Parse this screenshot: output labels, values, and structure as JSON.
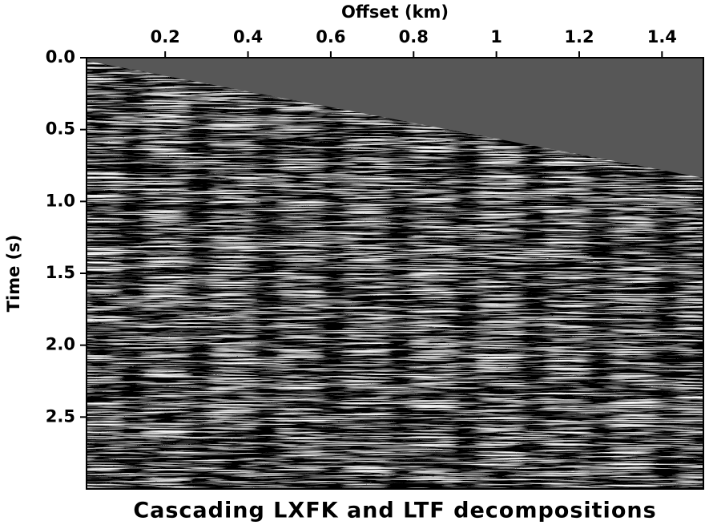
{
  "chart_data": {
    "type": "image",
    "x_label": "Offset (km)",
    "y_label": "Time (s)",
    "caption": "Cascading LXFK and LTF decompositions",
    "xlim": [
      0.01,
      1.5
    ],
    "xticks": [
      0.2,
      0.4,
      0.6,
      0.8,
      1,
      1.2,
      1.4
    ],
    "ylim": [
      0,
      3.0
    ],
    "yticks": [
      {
        "value": 0,
        "label": "0.0"
      },
      {
        "value": 0.5,
        "label": "0.5"
      },
      {
        "value": 1,
        "label": "1.0"
      },
      {
        "value": 1.5,
        "label": "1.5"
      },
      {
        "value": 2,
        "label": "2.0"
      },
      {
        "value": 2.5,
        "label": "2.5"
      }
    ],
    "y_reversed": true
  }
}
